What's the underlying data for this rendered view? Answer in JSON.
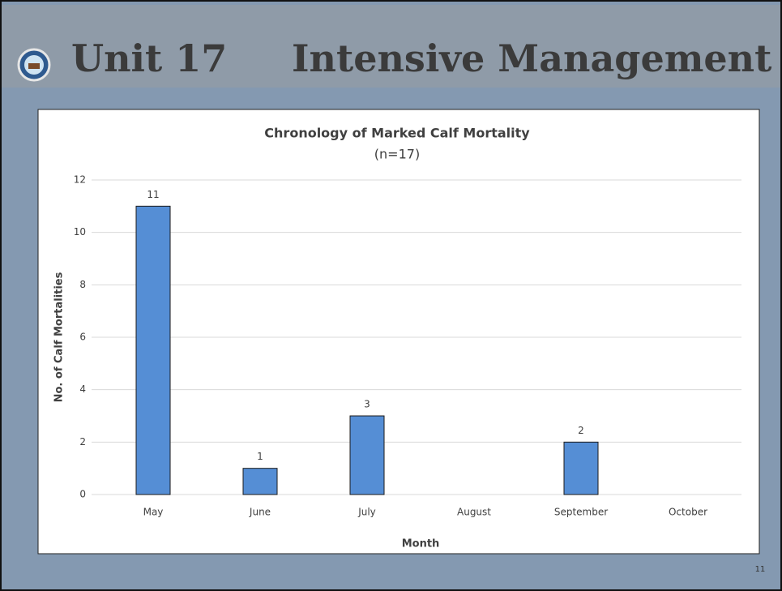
{
  "slide": {
    "title": "Unit 17",
    "title_right": "Intensive Management",
    "page_number": "11"
  },
  "chart_data": {
    "type": "bar",
    "title": "Chronology of Marked Calf Mortality",
    "subtitle": "(n=17)",
    "x_label": "Month",
    "y_label": "No. of Calf  Mortalities",
    "categories": [
      "May",
      "June",
      "July",
      "August",
      "September",
      "October"
    ],
    "values": [
      11,
      1,
      3,
      0,
      2,
      0
    ],
    "value_labels": [
      "11",
      "1",
      "3",
      null,
      "2",
      null
    ],
    "color": "#558ed5",
    "ylim": [
      0,
      12
    ],
    "yticks": [
      0,
      2,
      4,
      6,
      8,
      10,
      12
    ],
    "grid": true
  }
}
